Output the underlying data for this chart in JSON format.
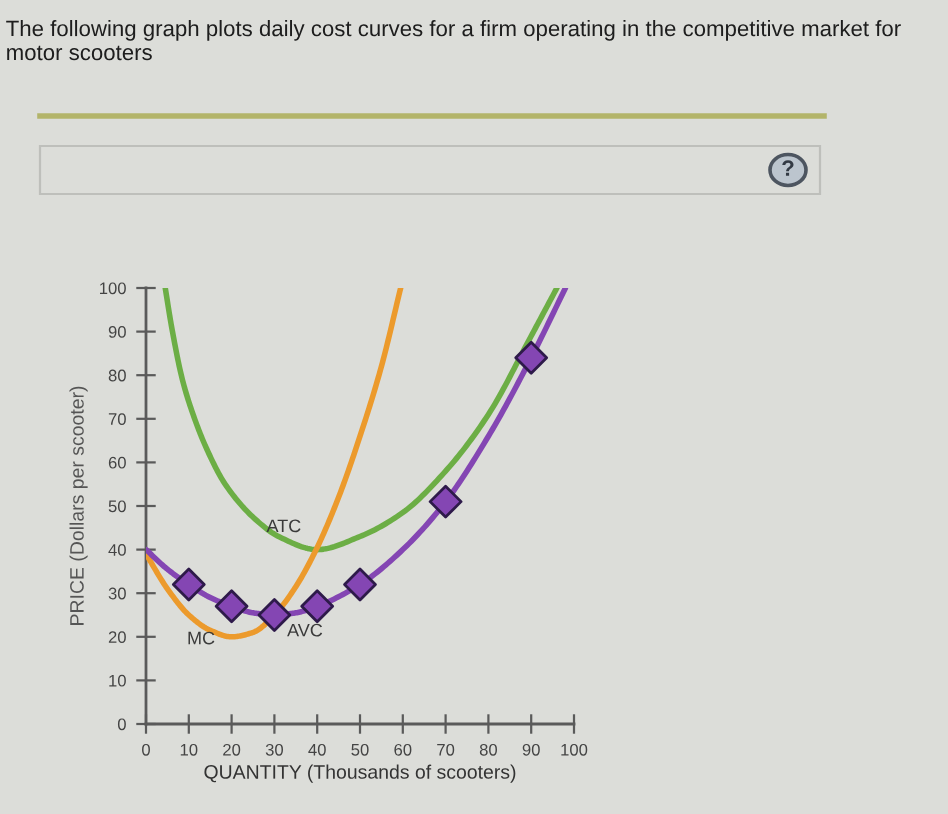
{
  "chart_data": {
    "type": "line",
    "title": "The following graph plots daily cost curves for a firm operating in the competitive market for motor scooters",
    "xlabel": "QUANTITY (Thousands of scooters)",
    "ylabel": "PRICE (Dollars per scooter)",
    "annotations": [
      "?"
    ],
    "series": [
      {
        "name": "ATC",
        "color": "#6cae45",
        "x": [
          4.5,
          6,
          8.5,
          11,
          14,
          18.5,
          25.5,
          31,
          40,
          50,
          60,
          70,
          80,
          90,
          96
        ],
        "values": [
          100,
          91,
          79,
          71,
          63.5,
          55,
          47,
          43,
          40,
          43,
          48.5,
          58,
          71,
          89,
          100
        ]
      },
      {
        "name": "MC",
        "color": "#ec9a2c",
        "x": [
          0,
          5,
          10,
          15,
          20,
          25,
          30,
          35,
          40,
          45,
          50,
          55,
          59.5
        ],
        "values": [
          39,
          31,
          25,
          21.5,
          20,
          21,
          25,
          31.5,
          40.5,
          52,
          66,
          82,
          100
        ]
      },
      {
        "name": "AVC",
        "color": "#8446b3",
        "x": [
          0,
          5,
          10,
          15,
          20,
          25,
          30,
          35,
          40,
          50,
          60,
          70,
          80,
          90,
          98
        ],
        "values": [
          40,
          35.5,
          32,
          29,
          27,
          25.5,
          25,
          25.5,
          27,
          32,
          40,
          51,
          66,
          84,
          100
        ]
      },
      {
        "type": "scatter",
        "marker": "diamond",
        "color": "#8446b3",
        "x": [
          10,
          20,
          30,
          40,
          50,
          70,
          90
        ],
        "values": [
          32,
          27,
          25,
          27,
          32,
          51,
          84
        ]
      }
    ],
    "xlim": [
      0,
      100
    ],
    "ylim": [
      0,
      100
    ],
    "xticks": [
      0,
      10,
      20,
      30,
      40,
      50,
      60,
      70,
      80,
      90,
      100
    ],
    "yticks": [
      0,
      10,
      20,
      30,
      40,
      50,
      60,
      70,
      80,
      90,
      100
    ]
  }
}
